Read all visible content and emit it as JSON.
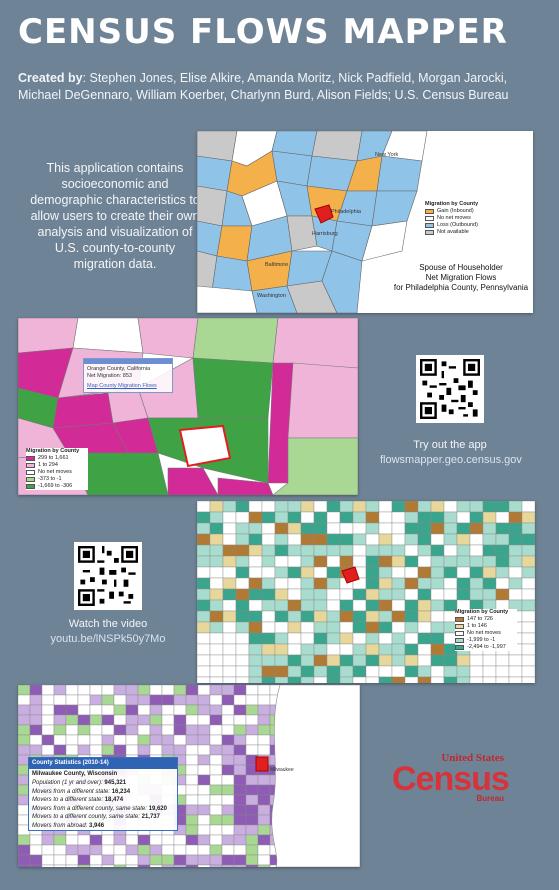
{
  "title": "CENSUS FLOWS MAPPER",
  "credits": {
    "label": "Created by",
    "names": ": Stephen Jones, Elise Alkire, Amanda Moritz, Nick Padfield, Morgan Jarocki, Michael DeGennaro, William Koerber, Charlynn Burd, Alison Fields; U.S. Census Bureau"
  },
  "intro": "This application contains socioeconomic and demographic characteristics to allow users to create their own analysis and visualization of U.S. county-to-county migration data.",
  "map1": {
    "legend_title": "Migration by County",
    "legend": [
      "Gain (Inbound)",
      "No net moves",
      "Loss (Outbound)",
      "Not available"
    ],
    "title": "Spouse of Householder\nNet Migration Flows\nfor Philadelphia County, Pennsylvania",
    "city_labels": [
      "New York",
      "Philadelphia",
      "Harrisburg",
      "Baltimore",
      "Washington"
    ]
  },
  "map2": {
    "popup_line1": "Orange County, California",
    "popup_line2": "Net Migration: 853",
    "popup_link": "Map County Migration Flows",
    "legend_title": "Migration by County",
    "legend": [
      "299 to 1,661",
      "1 to 294",
      "No net moves",
      "-373 to -1",
      "-1,669 to -306"
    ]
  },
  "app_link": {
    "caption": "Try out the app",
    "url": "flowsmapper.geo.census.gov"
  },
  "map3": {
    "legend_title": "Migration by County",
    "legend": [
      "147 to 726",
      "1 to 146",
      "No net moves",
      "-1,999 to -1",
      "-2,494 to -1,997"
    ]
  },
  "video_link": {
    "caption": "Watch the video",
    "url": "youtu.be/lNSPk50y7Mo"
  },
  "map4": {
    "stats_header": "County Statistics (2010-14)",
    "county": "Milwaukee County, Wisconsin",
    "rows": [
      {
        "label": "Population (1 yr and over)",
        "value": "945,321"
      },
      {
        "label": "Movers from a different state",
        "value": "16,234"
      },
      {
        "label": "Movers to a different state",
        "value": "18,474"
      },
      {
        "label": "Movers from a different county, same state",
        "value": "19,620"
      },
      {
        "label": "Movers to a different county, same state",
        "value": "21,737"
      },
      {
        "label": "Movers from abroad",
        "value": "3,946"
      }
    ],
    "city_label": "Milwaukee"
  },
  "logo": {
    "line1": "United States",
    "line2": "Census",
    "line3": "Bureau"
  },
  "colors": {
    "background": "#6f8396",
    "gain": "#f4b04a",
    "loss": "#8fc3e8",
    "no_net": "#ffffff",
    "na": "#c9c9c9",
    "magenta": "#d22a96",
    "pink": "#efb4d8",
    "green": "#3fa346",
    "light_green": "#a8d893",
    "teal": "#3aa58d",
    "light_teal": "#a8dccf",
    "brown": "#b07a34",
    "purple": "#8e5cb5",
    "light_purple": "#c9aee0"
  }
}
